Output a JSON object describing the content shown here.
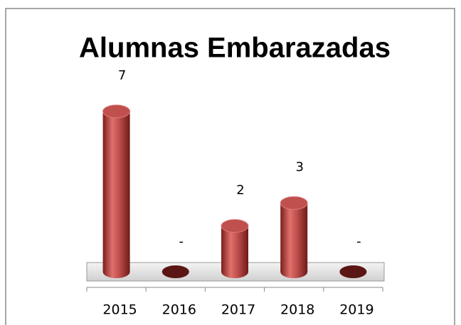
{
  "chart_data": {
    "type": "bar",
    "title": "Alumnas Embarazadas",
    "categories": [
      "2015",
      "2016",
      "2017",
      "2018",
      "2019"
    ],
    "values": [
      7,
      0,
      2,
      3,
      0
    ],
    "value_labels": [
      "7",
      "-",
      "2",
      "3",
      "-"
    ],
    "color": "#c0504d"
  }
}
